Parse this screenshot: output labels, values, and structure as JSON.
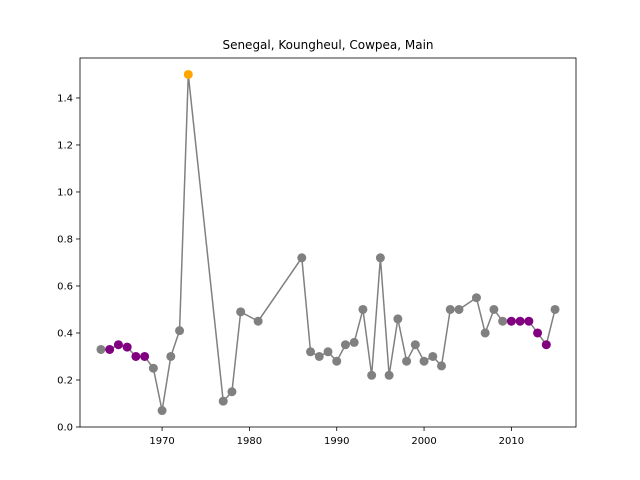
{
  "chart_data": {
    "type": "line",
    "title": "Senegal, Koungheul, Cowpea, Main",
    "xlabel": "",
    "ylabel": "",
    "xlim": [
      1960.6,
      2017.4
    ],
    "ylim": [
      0.0,
      1.57
    ],
    "x_ticks": [
      1970,
      1980,
      1990,
      2000,
      2010
    ],
    "y_ticks": [
      0.0,
      0.2,
      0.4,
      0.6,
      0.8,
      1.0,
      1.2,
      1.4
    ],
    "grid": false,
    "legend": "none",
    "line_color": "#808080",
    "point_colors": {
      "normal": "#808080",
      "low": "#800080",
      "high": "#FFA500"
    },
    "series": [
      {
        "x": [
          1963,
          1964,
          1965,
          1966,
          1967,
          1968,
          1969,
          1970,
          1971,
          1972,
          1973,
          1977,
          1978,
          1979,
          1981,
          1986,
          1987,
          1988,
          1989,
          1990,
          1991,
          1992,
          1993,
          1994,
          1995,
          1996,
          1997,
          1998,
          1999,
          2000,
          2001,
          2002,
          2003,
          2004,
          2006,
          2007,
          2008,
          2009,
          2010,
          2011,
          2012,
          2013,
          2014,
          2015
        ],
        "y": [
          0.33,
          0.33,
          0.35,
          0.34,
          0.3,
          0.3,
          0.25,
          0.07,
          0.3,
          0.41,
          1.5,
          0.11,
          0.15,
          0.49,
          0.45,
          0.72,
          0.32,
          0.3,
          0.32,
          0.28,
          0.35,
          0.36,
          0.5,
          0.22,
          0.72,
          0.22,
          0.46,
          0.28,
          0.35,
          0.28,
          0.3,
          0.26,
          0.5,
          0.5,
          0.55,
          0.4,
          0.5,
          0.45,
          0.45,
          0.45,
          0.45,
          0.4,
          0.35,
          0.5
        ],
        "category": [
          "normal",
          "low",
          "low",
          "low",
          "low",
          "low",
          "normal",
          "normal",
          "normal",
          "normal",
          "high",
          "normal",
          "normal",
          "normal",
          "normal",
          "normal",
          "normal",
          "normal",
          "normal",
          "normal",
          "normal",
          "normal",
          "normal",
          "normal",
          "normal",
          "normal",
          "normal",
          "normal",
          "normal",
          "normal",
          "normal",
          "normal",
          "normal",
          "normal",
          "normal",
          "normal",
          "normal",
          "normal",
          "low",
          "low",
          "low",
          "low",
          "low",
          "normal"
        ]
      }
    ]
  }
}
